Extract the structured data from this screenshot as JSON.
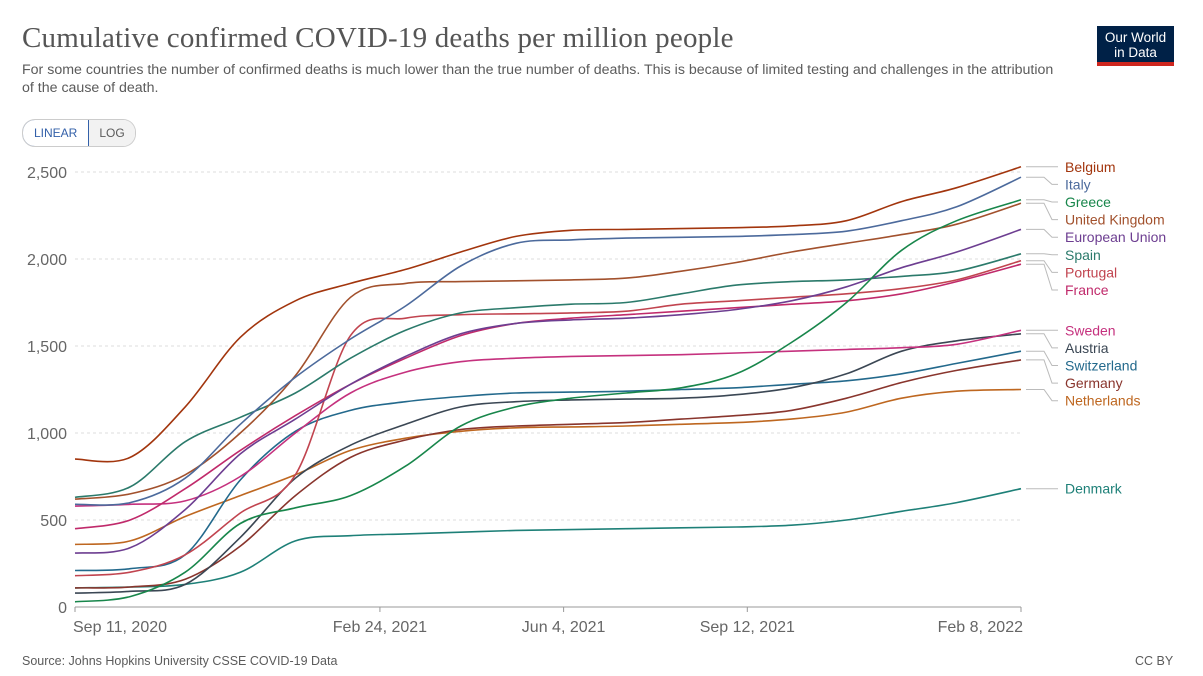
{
  "header": {
    "title": "Cumulative confirmed COVID-19 deaths per million people",
    "subtitle": "For some countries the number of confirmed deaths is much lower than the true number of deaths. This is because of limited testing and challenges in the attribution of the cause of death.",
    "logo_line1": "Our World",
    "logo_line2": "in Data"
  },
  "controls": {
    "linear_label": "LINEAR",
    "log_label": "LOG",
    "selected": "LINEAR"
  },
  "footer": {
    "source": "Source: Johns Hopkins University CSSE COVID-19 Data",
    "license": "CC BY"
  },
  "chart_data": {
    "type": "line",
    "title": "Cumulative confirmed COVID-19 deaths per million people",
    "xlabel": "",
    "ylabel": "",
    "ylim": [
      0,
      2500
    ],
    "yticks": [
      0,
      500,
      1000,
      1500,
      2000,
      2500
    ],
    "ytick_labels": [
      "0",
      "500",
      "1,000",
      "1,500",
      "2,000",
      "2,500"
    ],
    "x_dates": [
      "2020-09-11",
      "2020-10-11",
      "2020-11-10",
      "2020-12-10",
      "2021-01-09",
      "2021-02-08",
      "2021-03-10",
      "2021-04-09",
      "2021-05-09",
      "2021-06-08",
      "2021-07-08",
      "2021-08-07",
      "2021-09-06",
      "2021-10-06",
      "2021-11-05",
      "2021-12-05",
      "2022-01-04",
      "2022-02-08"
    ],
    "xticks": [
      {
        "date": "2020-09-11",
        "label": "Sep 11, 2020"
      },
      {
        "date": "2021-02-24",
        "label": "Feb 24, 2021"
      },
      {
        "date": "2021-06-04",
        "label": "Jun 4, 2021"
      },
      {
        "date": "2021-09-12",
        "label": "Sep 12, 2021"
      },
      {
        "date": "2022-02-08",
        "label": "Feb 8, 2022"
      }
    ],
    "grid": true,
    "legend": "right, end of lines",
    "series": [
      {
        "name": "Belgium",
        "color": "#a2350d",
        "values": [
          850,
          860,
          1150,
          1550,
          1760,
          1860,
          1940,
          2040,
          2130,
          2165,
          2170,
          2175,
          2180,
          2190,
          2220,
          2330,
          2410,
          2530
        ]
      },
      {
        "name": "Italy",
        "color": "#4c6a9c",
        "values": [
          590,
          600,
          740,
          1050,
          1320,
          1540,
          1730,
          1960,
          2090,
          2110,
          2120,
          2125,
          2130,
          2140,
          2160,
          2220,
          2300,
          2470
        ]
      },
      {
        "name": "Greece",
        "color": "#18864b",
        "values": [
          30,
          60,
          200,
          480,
          570,
          640,
          810,
          1040,
          1150,
          1200,
          1230,
          1260,
          1340,
          1520,
          1750,
          2050,
          2220,
          2340
        ]
      },
      {
        "name": "United Kingdom",
        "color": "#a2512d",
        "values": [
          620,
          650,
          760,
          1000,
          1330,
          1780,
          1860,
          1870,
          1875,
          1880,
          1890,
          1930,
          1980,
          2040,
          2090,
          2140,
          2200,
          2320
        ]
      },
      {
        "name": "European Union",
        "color": "#6d3e91",
        "values": [
          310,
          340,
          560,
          880,
          1080,
          1280,
          1440,
          1570,
          1630,
          1650,
          1660,
          1680,
          1710,
          1760,
          1840,
          1950,
          2040,
          2170
        ]
      },
      {
        "name": "Spain",
        "color": "#2b7a6b",
        "values": [
          630,
          690,
          950,
          1090,
          1230,
          1430,
          1590,
          1690,
          1720,
          1740,
          1750,
          1800,
          1850,
          1870,
          1880,
          1900,
          1930,
          2030
        ]
      },
      {
        "name": "Portugal",
        "color": "#c1444f",
        "values": [
          180,
          200,
          300,
          540,
          760,
          1560,
          1660,
          1680,
          1685,
          1690,
          1700,
          1740,
          1760,
          1780,
          1800,
          1830,
          1880,
          1990
        ]
      },
      {
        "name": "France",
        "color": "#c02a6b",
        "values": [
          450,
          500,
          680,
          900,
          1100,
          1280,
          1430,
          1560,
          1630,
          1660,
          1680,
          1700,
          1720,
          1740,
          1760,
          1800,
          1870,
          1970
        ]
      },
      {
        "name": "Sweden",
        "color": "#c5317e",
        "values": [
          580,
          590,
          610,
          750,
          1000,
          1230,
          1350,
          1410,
          1430,
          1440,
          1445,
          1450,
          1460,
          1470,
          1480,
          1490,
          1510,
          1590
        ]
      },
      {
        "name": "Austria",
        "color": "#3b4754",
        "values": [
          80,
          90,
          130,
          400,
          740,
          930,
          1050,
          1150,
          1180,
          1190,
          1195,
          1200,
          1220,
          1260,
          1340,
          1470,
          1530,
          1570
        ]
      },
      {
        "name": "Switzerland",
        "color": "#23698c",
        "values": [
          210,
          220,
          300,
          730,
          1010,
          1130,
          1180,
          1210,
          1230,
          1235,
          1240,
          1250,
          1260,
          1280,
          1300,
          1340,
          1400,
          1470
        ]
      },
      {
        "name": "Germany",
        "color": "#89352d",
        "values": [
          110,
          115,
          160,
          350,
          640,
          860,
          960,
          1020,
          1040,
          1050,
          1060,
          1080,
          1100,
          1130,
          1200,
          1290,
          1360,
          1420
        ]
      },
      {
        "name": "Netherlands",
        "color": "#be6720",
        "values": [
          360,
          380,
          520,
          640,
          760,
          900,
          970,
          1010,
          1030,
          1035,
          1040,
          1050,
          1060,
          1080,
          1120,
          1200,
          1240,
          1250
        ]
      },
      {
        "name": "Denmark",
        "color": "#1e8078",
        "values": [
          110,
          115,
          130,
          200,
          380,
          410,
          420,
          430,
          440,
          445,
          450,
          455,
          460,
          470,
          500,
          550,
          600,
          680
        ]
      }
    ]
  }
}
